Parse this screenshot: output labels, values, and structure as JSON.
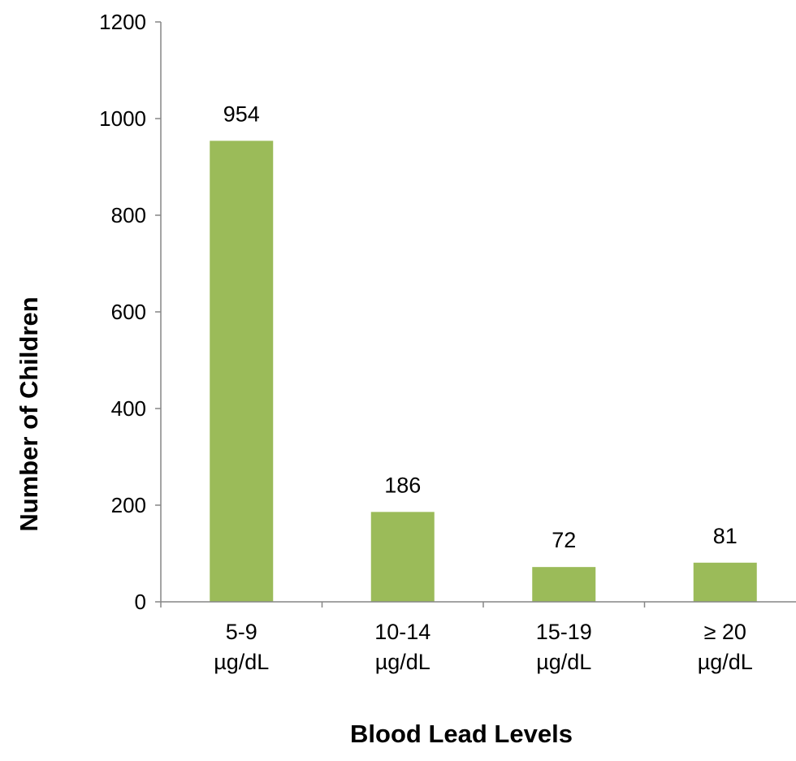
{
  "chart_data": {
    "type": "bar",
    "categories": [
      [
        "5-9",
        "µg/dL"
      ],
      [
        "10-14",
        "µg/dL"
      ],
      [
        "15-19",
        "µg/dL"
      ],
      [
        "≥ 20",
        "µg/dL"
      ]
    ],
    "values": [
      954,
      186,
      72,
      81
    ],
    "data_labels": [
      "954",
      "186",
      "72",
      "81"
    ],
    "xlabel": "Blood Lead Levels",
    "ylabel": "Number of Children",
    "ylim": [
      0,
      1200
    ],
    "yticks": [
      0,
      200,
      400,
      600,
      800,
      1000,
      1200
    ],
    "ytick_labels": [
      "0",
      "200",
      "400",
      "600",
      "800",
      "1000",
      "1200"
    ],
    "grid": false,
    "legend": "none",
    "bar_color": "#9BBB59",
    "axis_color": "#868686"
  }
}
